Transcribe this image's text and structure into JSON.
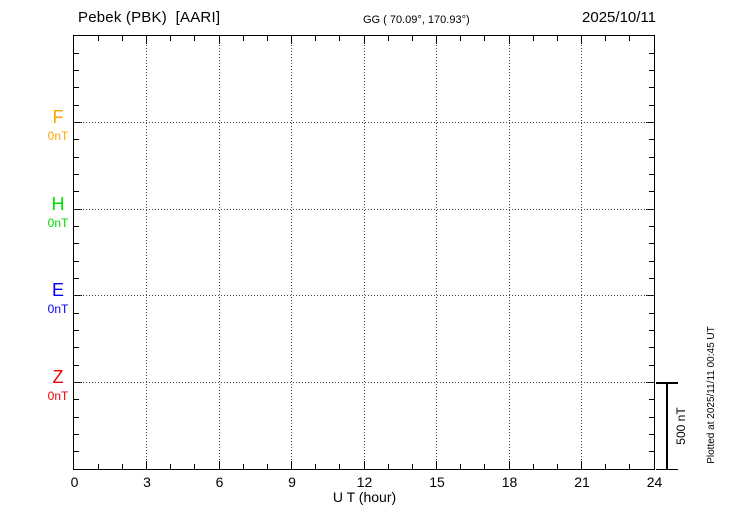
{
  "header": {
    "station": "Pebek (PBK)  [AARI]",
    "coords": "GG ( 70.09°, 170.93°)",
    "date": "2025/10/11"
  },
  "chart_data": {
    "type": "line",
    "title": "Pebek (PBK) [AARI] magnetogram 2025/10/11",
    "xlabel": "U T (hour)",
    "xlim": [
      0,
      24
    ],
    "x_ticks": [
      0,
      3,
      6,
      9,
      12,
      15,
      18,
      21,
      24
    ],
    "x_major_tick_hours": 3,
    "x_minor_tick_hours": 1,
    "grid": "dotted vertical lines every 3 h; dotted horizontal line at each channel 0 nT baseline",
    "y_division_nT": 100,
    "channel_offset_nT": 500,
    "series": [
      {
        "name": "F",
        "baseline_label": "0nT",
        "baseline_nT": 0,
        "color": "#FFA500",
        "values": []
      },
      {
        "name": "H",
        "baseline_label": "0nT",
        "baseline_nT": 0,
        "color": "#00DD00",
        "values": []
      },
      {
        "name": "E",
        "baseline_label": "0nT",
        "baseline_nT": 0,
        "color": "#0000EE",
        "values": []
      },
      {
        "name": "Z",
        "baseline_label": "0nT",
        "baseline_nT": 0,
        "color": "#EE0000",
        "values": []
      }
    ],
    "scale_bar": {
      "label": "500 nT",
      "span_nT": 500
    },
    "plotted_at": "Plotted at 2025/11/11 00:45 UT"
  }
}
